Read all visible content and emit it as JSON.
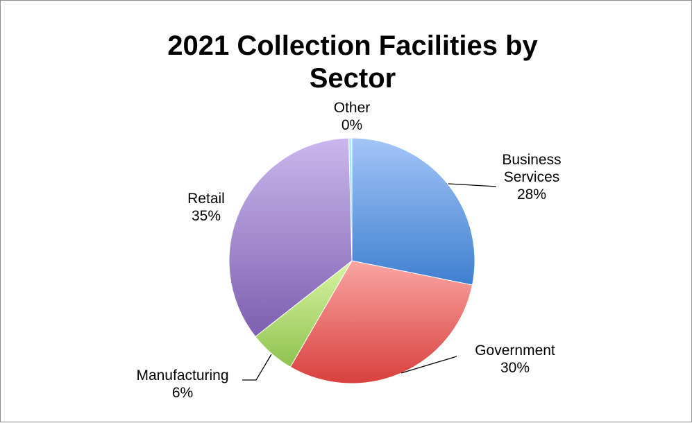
{
  "chart_data": {
    "type": "pie",
    "title_lines": [
      "2021 Collection Facilities by",
      "Sector"
    ],
    "slices": [
      {
        "name": "Business Services",
        "name_lines": [
          "Business",
          "Services"
        ],
        "value": 28,
        "label": "28%",
        "color_light": "#a3c5f7",
        "color_dark": "#3f7fd0"
      },
      {
        "name": "Government",
        "name_lines": [
          "Government"
        ],
        "value": 30,
        "label": "30%",
        "color_light": "#f9a5a3",
        "color_dark": "#d8403d"
      },
      {
        "name": "Manufacturing",
        "name_lines": [
          "Manufacturing"
        ],
        "value": 6,
        "label": "6%",
        "color_light": "#d9f5a3",
        "color_dark": "#8fc24f"
      },
      {
        "name": "Retail",
        "name_lines": [
          "Retail"
        ],
        "value": 35,
        "label": "35%",
        "color_light": "#cbb7ee",
        "color_dark": "#7d5fae"
      },
      {
        "name": "Other",
        "name_lines": [
          "Other"
        ],
        "value": 0.4,
        "label": "0%",
        "color_light": "#b3efff",
        "color_dark": "#4fc6e6"
      }
    ],
    "start_angle_deg": 0,
    "direction": "clockwise",
    "legend": "none",
    "data_labels": "outside with leader lines"
  }
}
